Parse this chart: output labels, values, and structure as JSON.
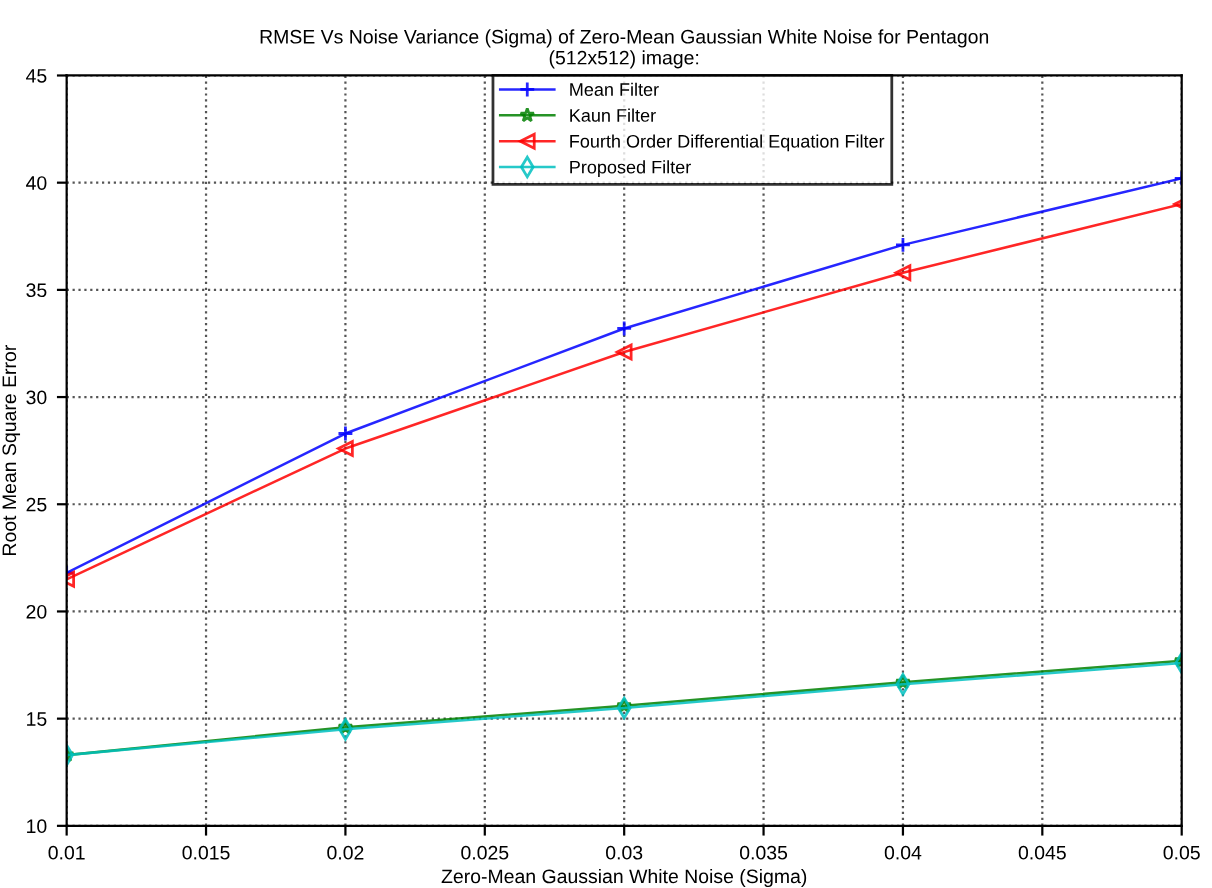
{
  "chart_data": {
    "type": "line",
    "title": "RMSE Vs Noise Variance (Sigma) of Zero-Mean Gaussian White Noise for Pentagon\n(512x512) image:",
    "xlabel": "Zero-Mean Gaussian White Noise (Sigma)",
    "ylabel": "Root Mean Square Error",
    "x": [
      0.01,
      0.02,
      0.03,
      0.04,
      0.05
    ],
    "series": [
      {
        "name": "Mean Filter",
        "color": "#0000ff",
        "marker": "cross",
        "values": [
          21.8,
          28.3,
          33.2,
          37.1,
          40.2
        ]
      },
      {
        "name": "Kaun Filter",
        "color": "#008000",
        "marker": "star",
        "values": [
          13.3,
          14.6,
          15.6,
          16.7,
          17.7
        ]
      },
      {
        "name": "Fourth Order Differential Equation Filter",
        "color": "#ff0000",
        "marker": "triangle",
        "values": [
          21.5,
          27.6,
          32.1,
          35.8,
          39.0
        ]
      },
      {
        "name": "Proposed Filter",
        "color": "#00bfbf",
        "marker": "diamond",
        "values": [
          13.3,
          14.5,
          15.5,
          16.6,
          17.6
        ]
      }
    ],
    "xlim": [
      0.01,
      0.05
    ],
    "xticks": [
      0.01,
      0.015,
      0.02,
      0.025,
      0.03,
      0.035,
      0.04,
      0.045,
      0.05
    ],
    "ylim": [
      10,
      45
    ],
    "yticks": [
      10,
      15,
      20,
      25,
      30,
      35,
      40,
      45
    ],
    "grid": true,
    "legend": "top right",
    "line_style": "solid"
  }
}
